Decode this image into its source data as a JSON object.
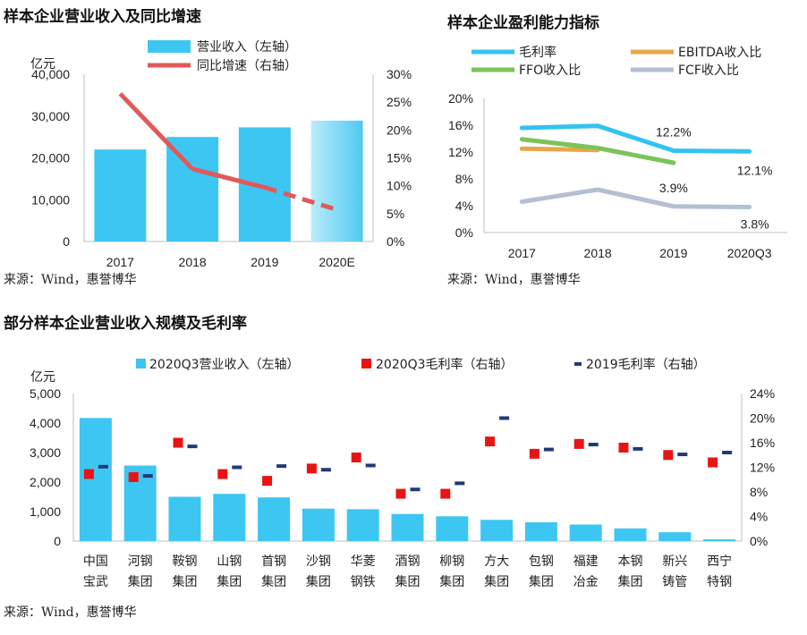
{
  "chart_data": [
    {
      "type": "bar",
      "title": "样本企业营业收入及同比增速",
      "unit_left": "亿元",
      "categories": [
        "2017",
        "2018",
        "2019",
        "2020E"
      ],
      "series": [
        {
          "name": "营业收入（左轴）",
          "axis": "left",
          "type": "bar",
          "values": [
            22000,
            25000,
            27300,
            28900
          ],
          "color": "#3ec6f2"
        },
        {
          "name": "同比增速（右轴）",
          "axis": "right",
          "type": "line",
          "values": [
            26.5,
            13.0,
            9.7,
            5.7
          ],
          "color": "#e05a5a",
          "dashed_last_segment": true
        }
      ],
      "ylim_left": [
        0,
        40000
      ],
      "ylim_right": [
        0,
        30
      ],
      "yticks_left": [
        "0",
        "10,000",
        "20,000",
        "30,000",
        "40,000"
      ],
      "yticks_right": [
        "0%",
        "5%",
        "10%",
        "15%",
        "20%",
        "25%",
        "30%"
      ],
      "source": "来源：Wind，惠誉博华"
    },
    {
      "type": "line",
      "title": "样本企业盈利能力指标",
      "categories": [
        "2017",
        "2018",
        "2019",
        "2020Q3"
      ],
      "series": [
        {
          "name": "毛利率",
          "values": [
            15.6,
            15.9,
            12.2,
            12.1
          ],
          "color": "#33c3f0"
        },
        {
          "name": "EBITDA收入比",
          "values": [
            12.5,
            12.3,
            null,
            null
          ],
          "color": "#e8a74a"
        },
        {
          "name": "FFO收入比",
          "values": [
            13.9,
            12.6,
            10.4,
            null
          ],
          "color": "#7cc35a"
        },
        {
          "name": "FCF收入比",
          "values": [
            4.6,
            6.4,
            3.9,
            3.8
          ],
          "color": "#b4bfd2"
        }
      ],
      "data_labels": [
        {
          "text": "12.2%",
          "series": 0,
          "index": 2
        },
        {
          "text": "12.1%",
          "series": 0,
          "index": 3
        },
        {
          "text": "3.9%",
          "series": 3,
          "index": 2
        },
        {
          "text": "3.8%",
          "series": 3,
          "index": 3
        }
      ],
      "ylim": [
        0,
        20
      ],
      "yticks": [
        "0%",
        "4%",
        "8%",
        "12%",
        "16%",
        "20%"
      ],
      "source": "来源：Wind，惠誉博华"
    },
    {
      "type": "bar",
      "title": "部分样本企业营业收入规模及毛利率",
      "unit_left": "亿元",
      "categories": [
        [
          "中国",
          "宝武"
        ],
        [
          "河钢",
          "集团"
        ],
        [
          "鞍钢",
          "集团"
        ],
        [
          "山钢",
          "集团"
        ],
        [
          "首钢",
          "集团"
        ],
        [
          "沙钢",
          "集团"
        ],
        [
          "华菱",
          "钢铁"
        ],
        [
          "酒钢",
          "集团"
        ],
        [
          "柳钢",
          "集团"
        ],
        [
          "方大",
          "集团"
        ],
        [
          "包钢",
          "集团"
        ],
        [
          "福建",
          "冶金"
        ],
        [
          "本钢",
          "集团"
        ],
        [
          "新兴",
          "铸管"
        ],
        [
          "西宁",
          "特钢"
        ]
      ],
      "series": [
        {
          "name": "2020Q3营业收入（左轴）",
          "axis": "left",
          "type": "bar",
          "color": "#3ec6f2",
          "values": [
            4170,
            2560,
            1500,
            1600,
            1480,
            1100,
            1080,
            920,
            840,
            720,
            640,
            560,
            430,
            300,
            60
          ]
        },
        {
          "name": "2020Q3毛利率（右轴）",
          "axis": "right",
          "type": "square-marker",
          "color": "#e81414",
          "values": [
            10.9,
            10.4,
            16.0,
            10.9,
            9.8,
            11.8,
            13.6,
            7.7,
            7.7,
            16.2,
            14.2,
            15.8,
            15.2,
            14.0,
            12.8
          ]
        },
        {
          "name": "2019毛利率（右轴）",
          "axis": "right",
          "type": "dash-marker",
          "color": "#1f3a78",
          "values": [
            12.1,
            10.6,
            15.4,
            12.0,
            12.2,
            11.6,
            12.3,
            8.4,
            9.4,
            20.0,
            14.9,
            15.7,
            15.0,
            14.1,
            14.4
          ]
        }
      ],
      "ylim_left": [
        0,
        5000
      ],
      "ylim_right": [
        0,
        24
      ],
      "yticks_left": [
        "0",
        "1,000",
        "2,000",
        "3,000",
        "4,000",
        "5,000"
      ],
      "yticks_right": [
        "0%",
        "4%",
        "8%",
        "12%",
        "16%",
        "20%",
        "24%"
      ],
      "source": "来源：Wind，惠誉博华"
    }
  ]
}
